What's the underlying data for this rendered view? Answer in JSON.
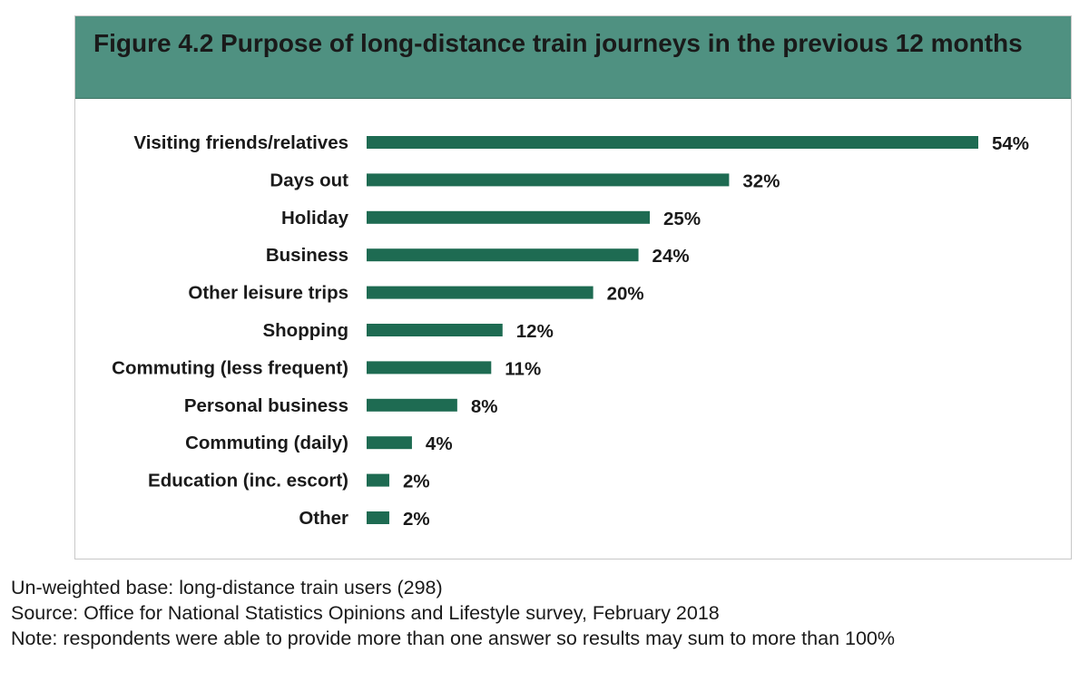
{
  "figure": {
    "title": "Figure 4.2 Purpose of long-distance train journeys in the previous 12 months"
  },
  "chart_data": {
    "type": "bar",
    "orientation": "horizontal",
    "title": "Figure 4.2 Purpose of long-distance train journeys in the previous 12 months",
    "categories": [
      "Visiting friends/relatives",
      "Days out",
      "Holiday",
      "Business",
      "Other leisure trips",
      "Shopping",
      "Commuting (less frequent)",
      "Personal business",
      "Commuting (daily)",
      "Education (inc. escort)",
      "Other"
    ],
    "values": [
      54,
      32,
      25,
      24,
      20,
      12,
      11,
      8,
      4,
      2,
      2
    ],
    "value_labels": [
      "54%",
      "32%",
      "25%",
      "24%",
      "20%",
      "12%",
      "11%",
      "8%",
      "4%",
      "2%",
      "2%"
    ],
    "unit": "%",
    "xlim": [
      0,
      54
    ],
    "grid": false,
    "legend": "none",
    "bar_color": "#1e6b52"
  },
  "notes": {
    "base": "Un-weighted base: long-distance train users (298)",
    "source": "Source: Office for National Statistics Opinions and Lifestyle survey, February 2018",
    "note": "Note: respondents were able to provide more than one answer so results may sum to more than 100%"
  },
  "colors": {
    "title_bar": "#4f9181",
    "bar": "#1e6b52",
    "text": "#1a1a1a"
  }
}
